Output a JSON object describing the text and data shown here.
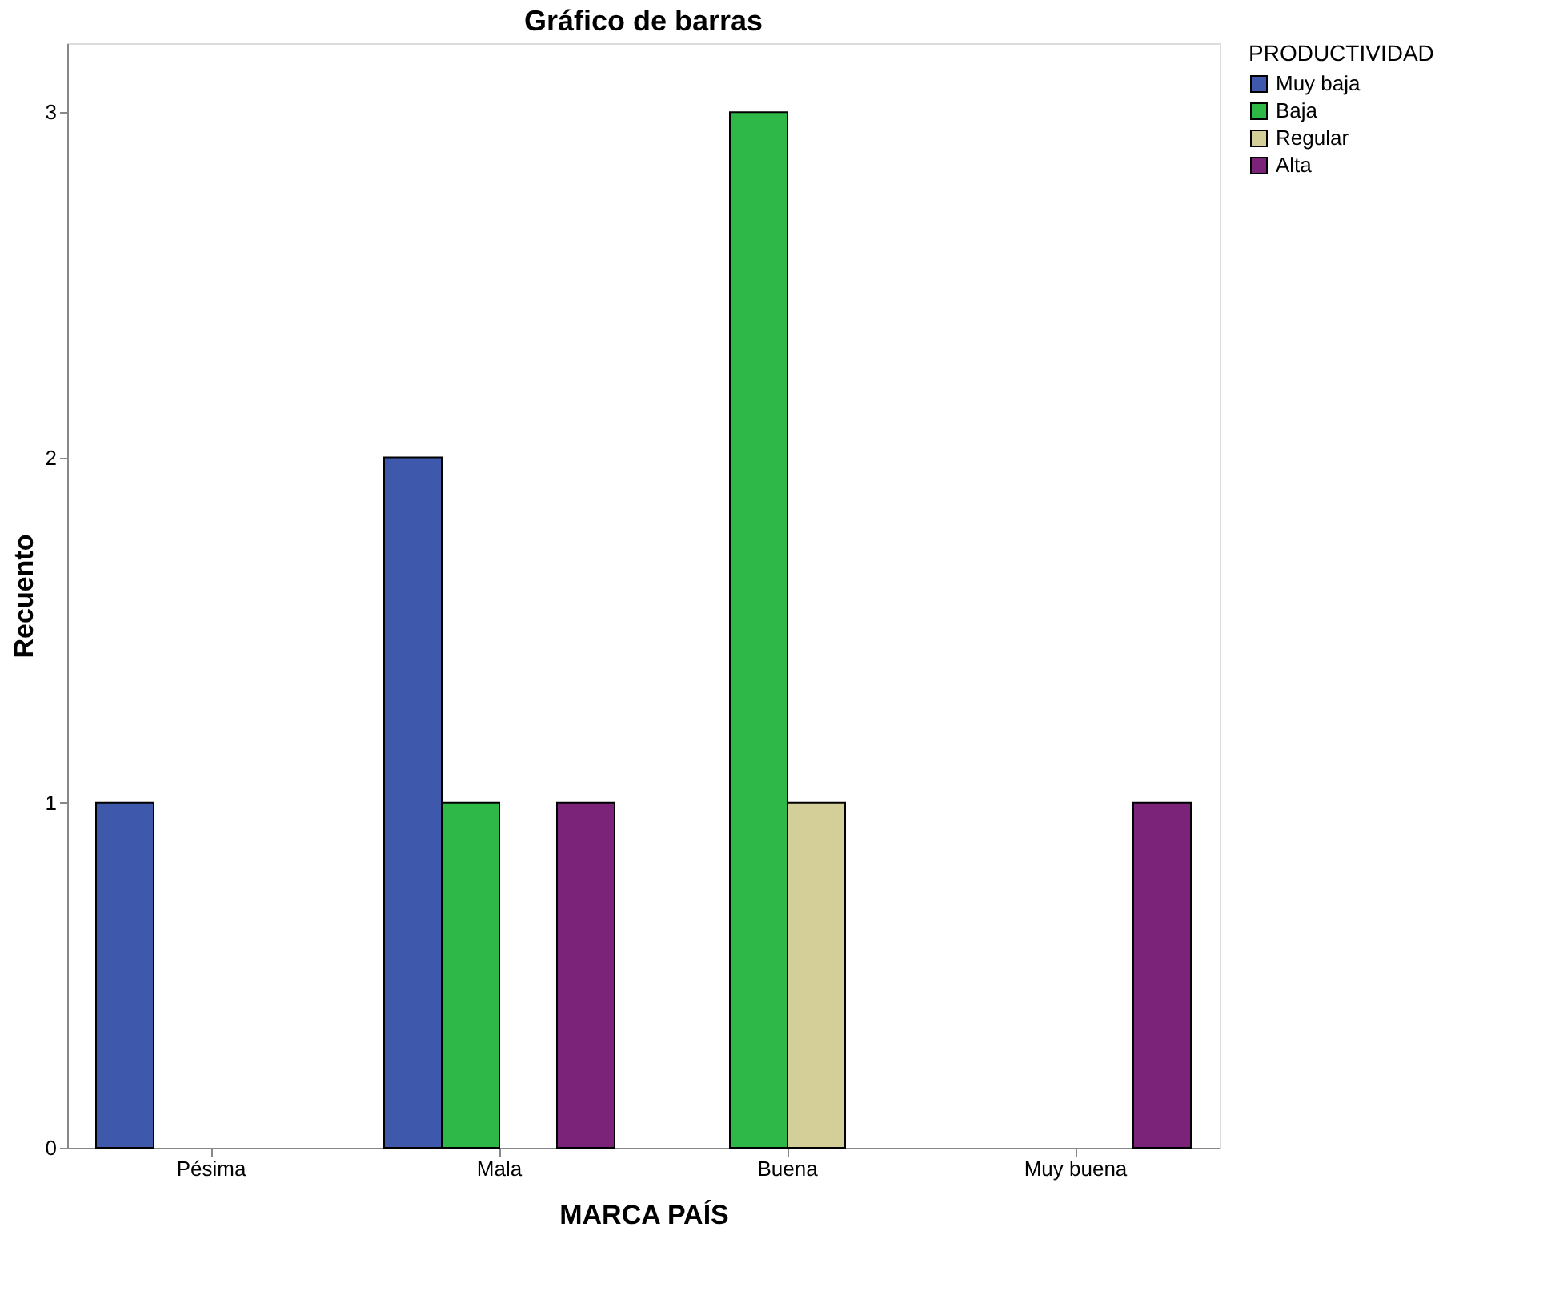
{
  "chart_data": {
    "type": "bar",
    "title": "Gráfico de barras",
    "xlabel": "MARCA PAÍS",
    "ylabel": "Recuento",
    "legend_title": "PRODUCTIVIDAD",
    "categories": [
      "Pésima",
      "Mala",
      "Buena",
      "Muy buena"
    ],
    "series": [
      {
        "name": "Muy baja",
        "color": "#3e58ac",
        "values": [
          1,
          2,
          null,
          null
        ]
      },
      {
        "name": "Baja",
        "color": "#2eb848",
        "values": [
          null,
          1,
          3,
          null
        ]
      },
      {
        "name": "Regular",
        "color": "#d4cf99",
        "values": [
          null,
          null,
          1,
          null
        ]
      },
      {
        "name": "Alta",
        "color": "#7b2379",
        "values": [
          null,
          1,
          null,
          1
        ]
      }
    ],
    "ylim": [
      0,
      3.2
    ],
    "yticks": [
      0,
      1,
      2,
      3
    ],
    "grid": false,
    "legend": "top right"
  }
}
